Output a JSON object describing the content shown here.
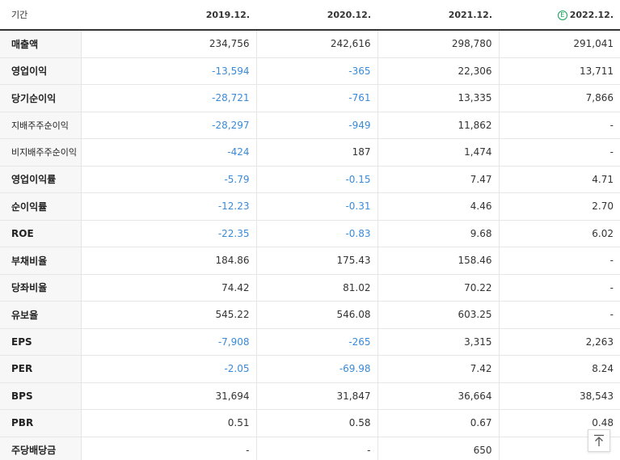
{
  "header": {
    "label": "기간",
    "periods": [
      "2019.12.",
      "2020.12.",
      "2021.12.",
      "2022.12."
    ],
    "estimate_mark": "E"
  },
  "rows": [
    {
      "label": "매출액",
      "values": [
        "234,756",
        "242,616",
        "298,780",
        "291,041"
      ]
    },
    {
      "label": "영업이익",
      "values": [
        "-13,594",
        "-365",
        "22,306",
        "13,711"
      ]
    },
    {
      "label": "당기순이익",
      "values": [
        "-28,721",
        "-761",
        "13,335",
        "7,866"
      ]
    },
    {
      "label": "지배주주순이익",
      "values": [
        "-28,297",
        "-949",
        "11,862",
        "-"
      ]
    },
    {
      "label": "비지배주주순이익",
      "values": [
        "-424",
        "187",
        "1,474",
        "-"
      ]
    },
    {
      "label": "영업이익률",
      "values": [
        "-5.79",
        "-0.15",
        "7.47",
        "4.71"
      ]
    },
    {
      "label": "순이익률",
      "values": [
        "-12.23",
        "-0.31",
        "4.46",
        "2.70"
      ]
    },
    {
      "label": "ROE",
      "values": [
        "-22.35",
        "-0.83",
        "9.68",
        "6.02"
      ]
    },
    {
      "label": "부채비율",
      "values": [
        "184.86",
        "175.43",
        "158.46",
        "-"
      ]
    },
    {
      "label": "당좌비율",
      "values": [
        "74.42",
        "81.02",
        "70.22",
        "-"
      ]
    },
    {
      "label": "유보율",
      "values": [
        "545.22",
        "546.08",
        "603.25",
        "-"
      ]
    },
    {
      "label": "EPS",
      "values": [
        "-7,908",
        "-265",
        "3,315",
        "2,263"
      ]
    },
    {
      "label": "PER",
      "values": [
        "-2.05",
        "-69.98",
        "7.42",
        "8.24"
      ]
    },
    {
      "label": "BPS",
      "values": [
        "31,694",
        "31,847",
        "36,664",
        "38,543"
      ]
    },
    {
      "label": "PBR",
      "values": [
        "0.51",
        "0.58",
        "0.67",
        "0.48"
      ]
    },
    {
      "label": "주당배당금",
      "values": [
        "-",
        "-",
        "650",
        ""
      ]
    }
  ],
  "colors": {
    "negative": "#3a8ad8",
    "estimate_badge": "#1aa05a"
  },
  "icons": {
    "scroll_top": "arrow-up-to-top-icon"
  }
}
